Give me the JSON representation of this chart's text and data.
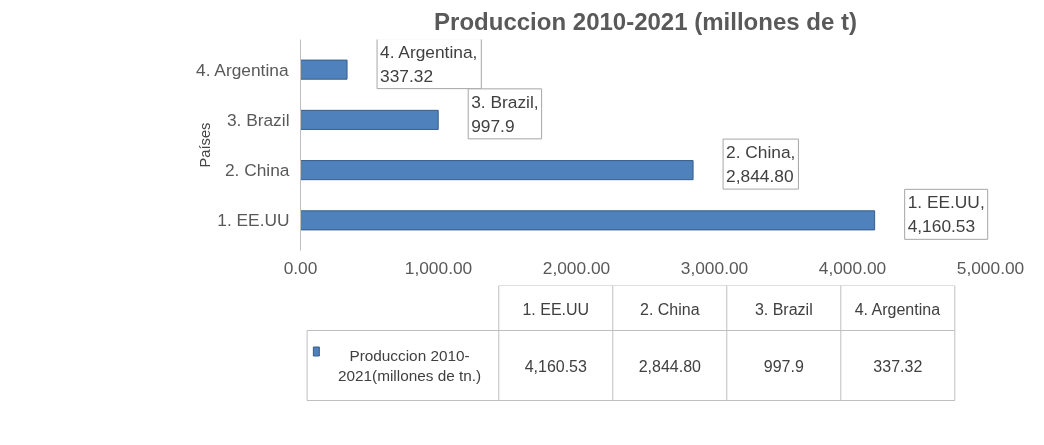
{
  "chart_data": {
    "type": "bar",
    "orientation": "horizontal",
    "title": "Produccion 2010-2021 (millones de t)",
    "ylabel": "Países",
    "categories": [
      "4. Argentina",
      "3. Brazil",
      "2. China",
      "1. EE.UU"
    ],
    "series": [
      {
        "name": "Produccion 2010-2021(millones de tn.)",
        "color": "#4f81bd",
        "values": [
          337.32,
          997.9,
          2844.8,
          4160.53
        ],
        "value_labels": [
          "4. Argentina, 337.32",
          "3. Brazil, 997.9",
          "2. China, 2,844.80",
          "1. EE.UU, 4,160.53"
        ]
      }
    ],
    "xlim": [
      0,
      5000
    ],
    "xticks": [
      {
        "value": 0,
        "label": "0.00"
      },
      {
        "value": 1000,
        "label": "1,000.00"
      },
      {
        "value": 2000,
        "label": "2,000.00"
      },
      {
        "value": 3000,
        "label": "3,000.00"
      },
      {
        "value": 4000,
        "label": "4,000.00"
      },
      {
        "value": 5000,
        "label": "5,000.00"
      }
    ],
    "annotations": [
      "4,160.53",
      "2,844.80",
      "997.9",
      "337.32"
    ]
  }
}
